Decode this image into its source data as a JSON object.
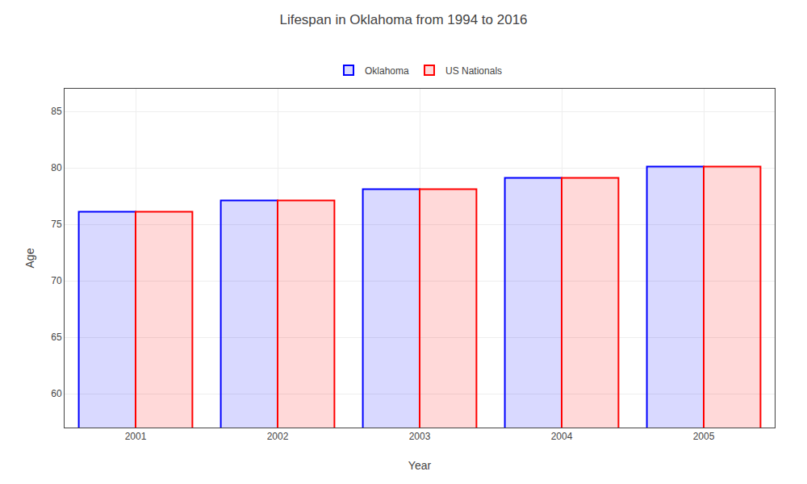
{
  "chart_data": {
    "type": "bar",
    "title": "Lifespan in Oklahoma from 1994 to 2016",
    "x_label": "Year",
    "y_label": "Age",
    "categories": [
      "2001",
      "2002",
      "2003",
      "2004",
      "2005"
    ],
    "series": [
      {
        "name": "Oklahoma",
        "color": "#0000ff",
        "values": [
          76.1,
          77.1,
          78.1,
          79.1,
          80.1
        ]
      },
      {
        "name": "US Nationals",
        "color": "#ff0000",
        "values": [
          76.1,
          77.1,
          78.1,
          79.1,
          80.1
        ]
      }
    ],
    "ylim": [
      57,
      87
    ],
    "yticks": [
      60,
      65,
      70,
      75,
      80,
      85
    ],
    "grid": true,
    "legend": "top"
  }
}
